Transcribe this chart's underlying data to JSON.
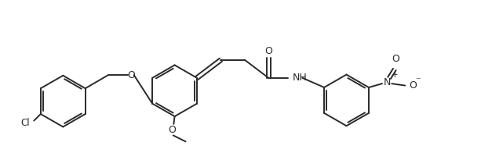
{
  "bg_color": "#ffffff",
  "line_color": "#2a2a2a",
  "line_width": 1.4,
  "figsize": [
    6.13,
    1.96
  ],
  "dpi": 100,
  "xlim": [
    0,
    10
  ],
  "ylim": [
    0,
    3.2
  ]
}
